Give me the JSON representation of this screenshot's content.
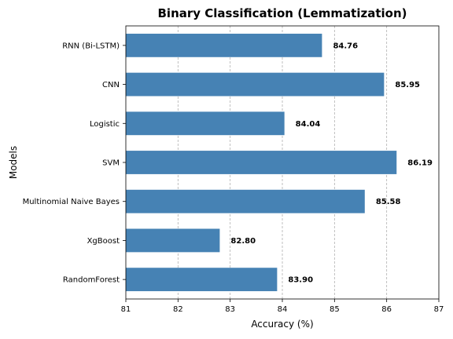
{
  "chart_data": {
    "type": "bar",
    "orientation": "horizontal",
    "title": "Binary Classification (Lemmatization)",
    "xlabel": "Accuracy (%)",
    "ylabel": "Models",
    "xlim": [
      81,
      87
    ],
    "xticks": [
      "81",
      "82",
      "83",
      "84",
      "85",
      "86",
      "87"
    ],
    "grid": "vertical dashed",
    "bar_color": "#4682b4",
    "categories": [
      "RNN (Bi-LSTM)",
      "CNN",
      "Logistic",
      "SVM",
      "Multinomial Naive Bayes",
      "XgBoost",
      "RandomForest"
    ],
    "values": [
      84.76,
      85.95,
      84.04,
      86.19,
      85.58,
      82.8,
      83.9
    ],
    "value_labels": [
      "84.76",
      "85.95",
      "84.04",
      "86.19",
      "85.58",
      "82.80",
      "83.90"
    ]
  }
}
